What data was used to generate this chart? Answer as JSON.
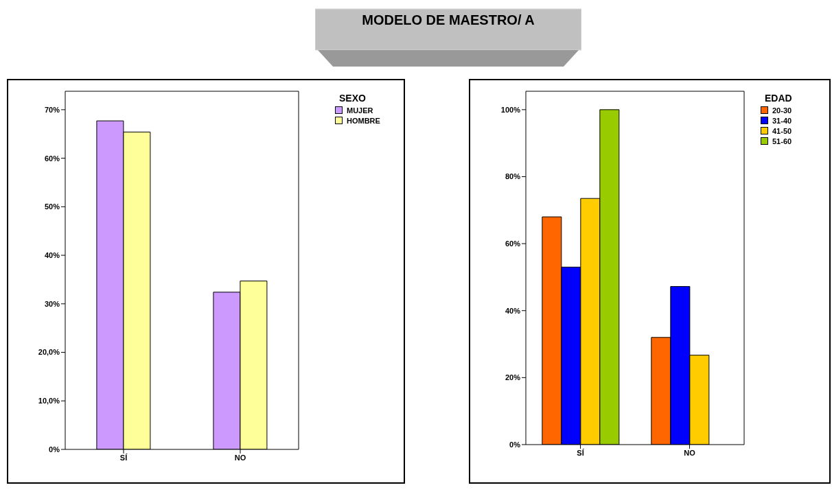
{
  "chart_data": [
    {
      "type": "bar",
      "legend_title": "SEXO",
      "categories": [
        "SÍ",
        "NO"
      ],
      "series": [
        {
          "name": "MUJER",
          "color": "#cc99ff",
          "values": [
            67.7,
            32.4
          ]
        },
        {
          "name": "HOMBRE",
          "color": "#ffff99",
          "values": [
            65.4,
            34.7
          ]
        }
      ],
      "ylim": [
        0,
        73.8
      ],
      "yticks": [
        {
          "value": 0,
          "label": "0%"
        },
        {
          "value": 10,
          "label": "10,0%"
        },
        {
          "value": 20,
          "label": "20,0%"
        },
        {
          "value": 30,
          "label": "30%"
        },
        {
          "value": 40,
          "label": "40%"
        },
        {
          "value": 50,
          "label": "50%"
        },
        {
          "value": 60,
          "label": "60%"
        },
        {
          "value": 70,
          "label": "70%"
        }
      ],
      "grid": false,
      "legend": "top right"
    },
    {
      "type": "bar",
      "title": "MODELO DE MAESTRO/ A",
      "legend_title": "EDAD",
      "categories": [
        "SÍ",
        "NO"
      ],
      "series": [
        {
          "name": "20-30",
          "color": "#ff6600",
          "values": [
            68.0,
            32.0
          ]
        },
        {
          "name": "31-40",
          "color": "#0000ff",
          "values": [
            53.0,
            47.2
          ]
        },
        {
          "name": "41-50",
          "color": "#ffcc00",
          "values": [
            73.5,
            26.7
          ]
        },
        {
          "name": "51-60",
          "color": "#99cc00",
          "values": [
            100,
            null
          ]
        }
      ],
      "ylim": [
        0,
        105.5
      ],
      "yticks": [
        {
          "value": 0,
          "label": "0%"
        },
        {
          "value": 20,
          "label": "20%"
        },
        {
          "value": 40,
          "label": "40%"
        },
        {
          "value": 60,
          "label": "60%"
        },
        {
          "value": 80,
          "label": "80%"
        },
        {
          "value": 100,
          "label": "100%"
        }
      ],
      "grid": false,
      "legend": "top right"
    }
  ]
}
